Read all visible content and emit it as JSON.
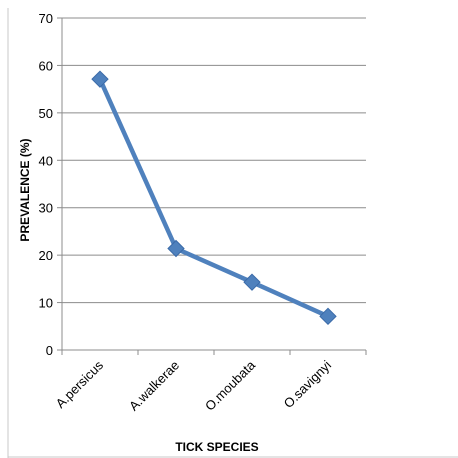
{
  "chart_data": {
    "type": "line",
    "categories": [
      "A.persicus",
      "A.walkerae",
      "O.moubata",
      "O.savignyi"
    ],
    "series": [
      {
        "values": [
          57.1,
          21.4,
          14.3,
          7.1
        ],
        "color": "#4f81bd",
        "marker": "diamond"
      }
    ],
    "title": "",
    "xlabel": "TICK SPECIES",
    "ylabel": "PREVALENCE (%)",
    "ylim": [
      0,
      70
    ],
    "yticks": [
      0,
      10,
      20,
      30,
      40,
      50,
      60,
      70
    ],
    "grid": true,
    "legend": false
  }
}
